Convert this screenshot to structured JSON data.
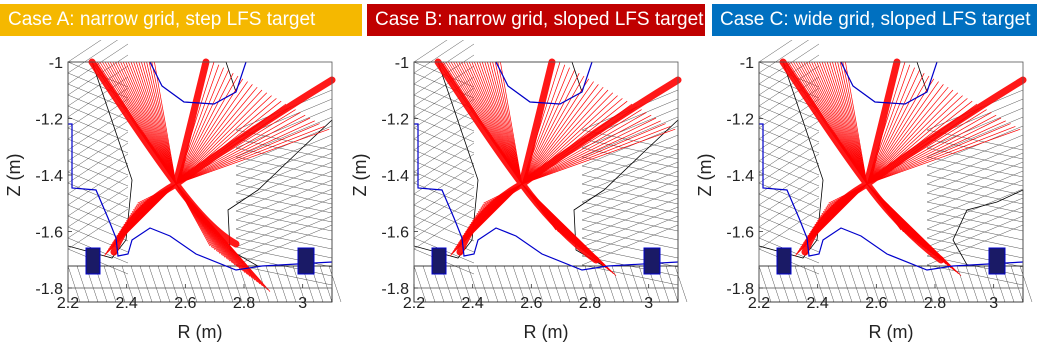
{
  "colors": {
    "case_a": "#f5b800",
    "case_b": "#c00000",
    "case_c": "#0070c0",
    "mesh_red": "#ff0000",
    "mesh_black": "#000000",
    "wall_blue": "#0000cc"
  },
  "panels": [
    {
      "title": "Case A: narrow grid, step LFS target",
      "color_key": "case_a",
      "xlabel": "R (m)",
      "ylabel": "Z (m)",
      "xticks": [
        "2.2",
        "2.4",
        "2.6",
        "2.8",
        "3"
      ],
      "yticks": [
        "-1",
        "-1.2",
        "-1.4",
        "-1.6",
        "-1.8"
      ]
    },
    {
      "title": "Case B: narrow grid, sloped LFS target",
      "color_key": "case_b",
      "xlabel": "R (m)",
      "ylabel": "Z (m)",
      "xticks": [
        "2.2",
        "2.4",
        "2.6",
        "2.8",
        "3"
      ],
      "yticks": [
        "-1",
        "-1.2",
        "-1.4",
        "-1.6",
        "-1.8"
      ]
    },
    {
      "title": "Case C: wide grid, sloped LFS target",
      "color_key": "case_c",
      "xlabel": "R (m)",
      "ylabel": "Z (m)",
      "xticks": [
        "2.2",
        "2.4",
        "2.6",
        "2.8",
        "3"
      ],
      "yticks": [
        "-1",
        "-1.2",
        "-1.4",
        "-1.6",
        "-1.8"
      ]
    }
  ]
}
